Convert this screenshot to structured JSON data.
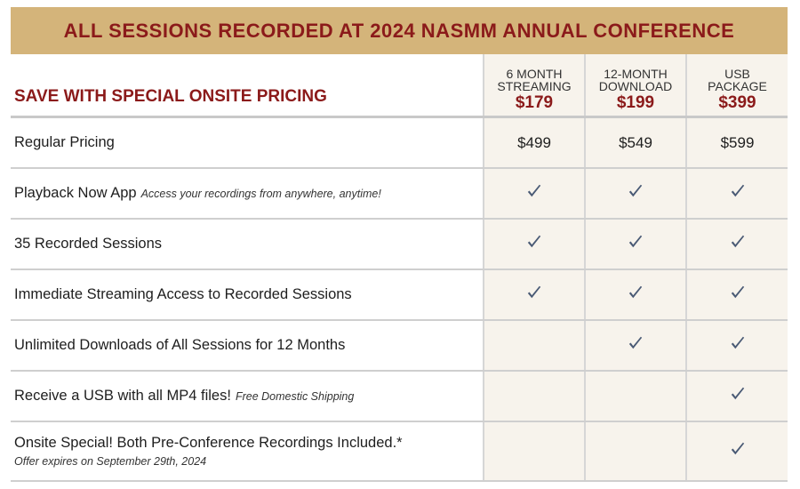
{
  "banner": "ALL SESSIONS RECORDED AT 2024 NASMM ANNUAL CONFERENCE",
  "header": {
    "title": "SAVE WITH SPECIAL ONSITE PRICING",
    "plans": [
      {
        "name": "6 MONTH\nSTREAMING",
        "price": "$179"
      },
      {
        "name": "12-MONTH\nDOWNLOAD",
        "price": "$199"
      },
      {
        "name": "USB\nPACKAGE",
        "price": "$399"
      }
    ]
  },
  "regular": {
    "label": "Regular Pricing",
    "prices": [
      "$499",
      "$549",
      "$599"
    ]
  },
  "features": [
    {
      "label": "Playback Now App",
      "note": "Access your recordings from anywhere, anytime!",
      "sub": "",
      "checks": [
        true,
        true,
        true
      ]
    },
    {
      "label": "35 Recorded Sessions",
      "note": "",
      "sub": "",
      "checks": [
        true,
        true,
        true
      ]
    },
    {
      "label": "Immediate Streaming Access to Recorded Sessions",
      "note": "",
      "sub": "",
      "checks": [
        true,
        true,
        true
      ]
    },
    {
      "label": "Unlimited Downloads of All Sessions for 12 Months",
      "note": "",
      "sub": "",
      "checks": [
        false,
        true,
        true
      ]
    },
    {
      "label": "Receive a USB with all MP4 files!",
      "note": "Free Domestic Shipping",
      "sub": "",
      "checks": [
        false,
        false,
        true
      ]
    },
    {
      "label": "Onsite Special! Both Pre-Conference Recordings Included.*",
      "note": "",
      "sub": "Offer expires on September 29th, 2024",
      "checks": [
        false,
        false,
        true
      ]
    }
  ],
  "colors": {
    "accent": "#8b1a1a",
    "banner_bg": "#d4b47a",
    "check": "#4a5a75"
  },
  "icons": {
    "check": "checkmark-icon"
  }
}
